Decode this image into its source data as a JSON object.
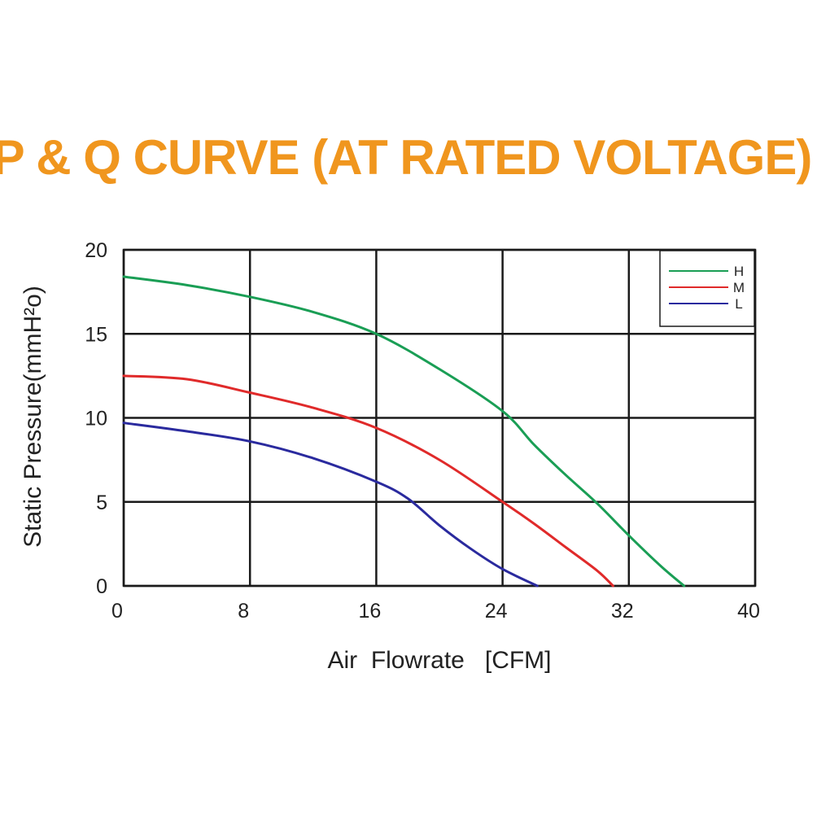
{
  "chart_data": {
    "type": "line",
    "title": "P & Q CURVE (AT RATED VOLTAGE)",
    "xlabel": "Air  Flowrate   [CFM]",
    "ylabel": "Static Pressure(mmH²o)",
    "xlim": [
      0,
      40
    ],
    "ylim": [
      0,
      20
    ],
    "xticks": [
      "0",
      "8",
      "16",
      "24",
      "32",
      "40"
    ],
    "yticks": [
      "0",
      "5",
      "10",
      "15",
      "20"
    ],
    "grid": true,
    "legend_position": "top-right",
    "series": [
      {
        "name": "H",
        "color": "#1a9e55",
        "points": [
          [
            0,
            18.4
          ],
          [
            4,
            17.9
          ],
          [
            8,
            17.2
          ],
          [
            12,
            16.3
          ],
          [
            16,
            15.0
          ],
          [
            20,
            12.9
          ],
          [
            24,
            10.4
          ],
          [
            26,
            8.4
          ],
          [
            28,
            6.6
          ],
          [
            30,
            4.9
          ],
          [
            32,
            3.0
          ],
          [
            34,
            1.2
          ],
          [
            35.5,
            0
          ]
        ]
      },
      {
        "name": "M",
        "color": "#e02a2a",
        "points": [
          [
            0,
            12.5
          ],
          [
            4,
            12.3
          ],
          [
            8,
            11.5
          ],
          [
            12,
            10.6
          ],
          [
            16,
            9.4
          ],
          [
            20,
            7.5
          ],
          [
            24,
            5.0
          ],
          [
            26,
            3.7
          ],
          [
            28,
            2.3
          ],
          [
            30,
            0.9
          ],
          [
            31,
            0
          ]
        ]
      },
      {
        "name": "L",
        "color": "#2a2a9e",
        "points": [
          [
            0,
            9.7
          ],
          [
            4,
            9.2
          ],
          [
            8,
            8.6
          ],
          [
            12,
            7.6
          ],
          [
            16,
            6.2
          ],
          [
            18,
            5.2
          ],
          [
            20,
            3.6
          ],
          [
            22,
            2.2
          ],
          [
            24,
            1.0
          ],
          [
            26.2,
            0
          ]
        ]
      }
    ]
  },
  "style": {
    "title_color": "#f0961e",
    "grid_color": "#1a1a1a",
    "text_color": "#222222"
  }
}
